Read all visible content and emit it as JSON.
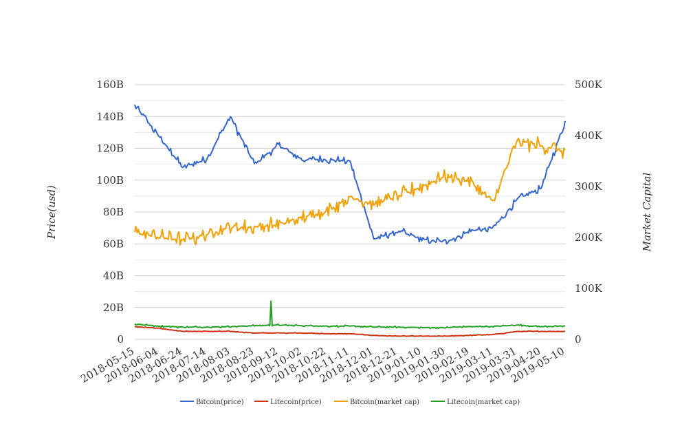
{
  "chart_data": {
    "type": "line",
    "title": "",
    "x": [
      "2018-05-15",
      "2018-06-04",
      "2018-06-24",
      "2018-07-14",
      "2018-08-03",
      "2018-08-23",
      "2018-09-12",
      "2018-10-02",
      "2018-10-22",
      "2018-11-11",
      "2018-12-01",
      "2018-12-21",
      "2019-01-10",
      "2019-01-30",
      "2019-02-19",
      "2019-03-11",
      "2019-03-31",
      "2019-04-20",
      "2019-05-10"
    ],
    "xlabel": "",
    "ylabel_left": "Price(usd)",
    "ylabel_right": "Market Capital",
    "y_left_ticks": [
      "0",
      "20B",
      "40B",
      "60B",
      "80B",
      "100B",
      "120B",
      "140B",
      "160B"
    ],
    "y_right_ticks": [
      "0",
      "100K",
      "200K",
      "300K",
      "400K",
      "500K"
    ],
    "ylim_left": [
      0,
      160
    ],
    "ylim_right": [
      0,
      500
    ],
    "grid": true,
    "legend_position": "bottom",
    "series": [
      {
        "name": "Bitcoin(price)",
        "axis": "left",
        "color": "#3366cc",
        "values": [
          147,
          128,
          108,
          113,
          140,
          110,
          122,
          113,
          113,
          112,
          63,
          68,
          63,
          61,
          68,
          70,
          88,
          95,
          137
        ]
      },
      {
        "name": "Litecoin(price)",
        "axis": "left",
        "color": "#cc3311",
        "values": [
          8,
          7,
          5,
          5,
          5,
          4,
          4,
          4,
          3.5,
          3.5,
          2.5,
          2,
          2,
          2,
          2.5,
          3,
          5,
          5,
          5
        ]
      },
      {
        "name": "Bitcoin(market cap)",
        "axis": "right",
        "color": "#f0a000",
        "values": [
          210,
          200,
          195,
          205,
          220,
          220,
          225,
          240,
          250,
          280,
          265,
          280,
          300,
          320,
          310,
          270,
          390,
          380,
          370
        ]
      },
      {
        "name": "Litecoin(market cap)",
        "axis": "right",
        "color": "#22a022",
        "values": [
          30,
          26,
          24,
          24,
          25,
          27,
          28,
          27,
          26,
          26,
          24,
          24,
          23,
          23,
          25,
          25,
          28,
          25,
          26
        ],
        "spike": {
          "x": "2018-09-06",
          "value": 75
        }
      }
    ]
  }
}
